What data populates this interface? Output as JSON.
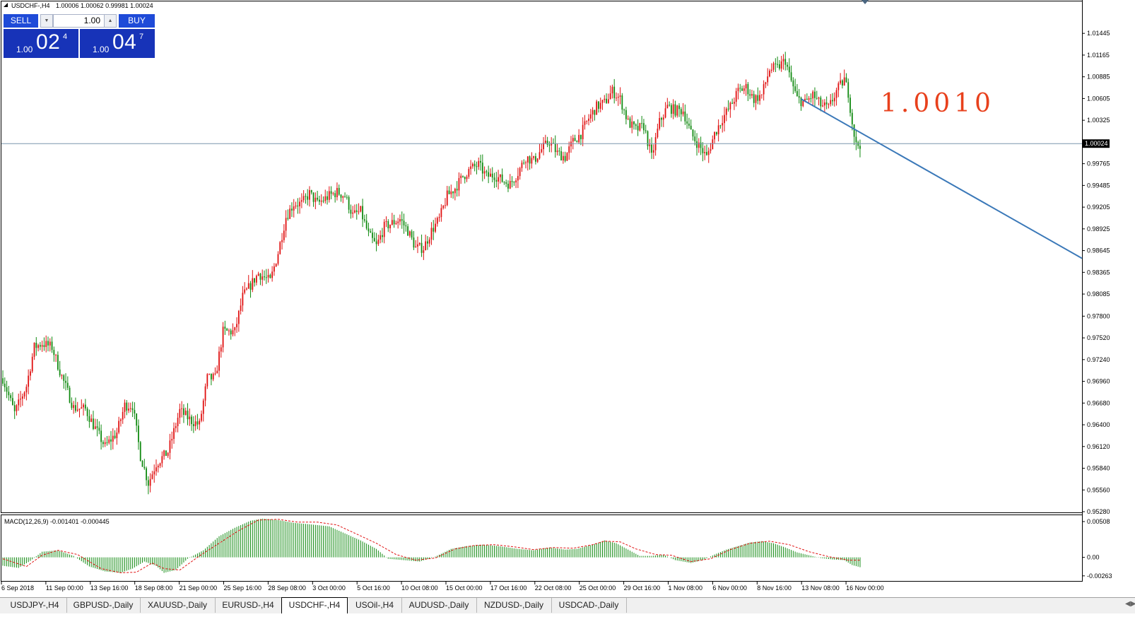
{
  "header": {
    "symbol_text": "USDCHF-,H4",
    "ohlc_text": "1.00006 1.00062 0.99981 1.00024"
  },
  "trade_panel": {
    "sell_label": "SELL",
    "buy_label": "BUY",
    "volume_value": "1.00",
    "sell_lots": "1.00",
    "sell_big": "02",
    "sell_frac": "4",
    "buy_lots": "1.00",
    "buy_big": "04",
    "buy_frac": "7"
  },
  "annotation": {
    "text": "1.0010",
    "color": "#e8401c"
  },
  "colors": {
    "bull": "#e01010",
    "bear": "#118a11",
    "hist": "#118a11",
    "signal": "#e01010",
    "trendline": "#3a78b8",
    "bidline": "#7a95ae"
  },
  "tabs": [
    {
      "label": "USDJPY-,H4"
    },
    {
      "label": "GBPUSD-,Daily"
    },
    {
      "label": "XAUUSD-,Daily"
    },
    {
      "label": "EURUSD-,H4"
    },
    {
      "label": "USDCHF-,H4"
    },
    {
      "label": "USOil-,H4"
    },
    {
      "label": "AUDUSD-,Daily"
    },
    {
      "label": "NZDUSD-,Daily"
    },
    {
      "label": "USDCAD-,Daily"
    }
  ],
  "active_tab": "USDCHF-,H4",
  "chart_data": {
    "type": "candlestick",
    "symbol": "USDCHF-",
    "timeframe": "H4",
    "ylim": [
      0.9528,
      1.0172
    ],
    "y_ticks": [
      "1.01445",
      "1.01165",
      "1.00885",
      "1.00605",
      "1.00325",
      "0.99765",
      "0.99485",
      "0.99205",
      "0.98925",
      "0.98645",
      "0.98365",
      "0.98085",
      "0.97800",
      "0.97520",
      "0.97240",
      "0.96960",
      "0.96680",
      "0.96400",
      "0.96120",
      "0.95840",
      "0.95560",
      "0.95280"
    ],
    "current_price_label": "1.00024",
    "current_price": 1.00024,
    "x_ticks": [
      "6 Sep 2018",
      "11 Sep 00:00",
      "13 Sep 16:00",
      "18 Sep 08:00",
      "21 Sep 00:00",
      "25 Sep 16:00",
      "28 Sep 08:00",
      "3 Oct 00:00",
      "5 Oct 16:00",
      "10 Oct 08:00",
      "15 Oct 00:00",
      "17 Oct 16:00",
      "22 Oct 08:00",
      "25 Oct 00:00",
      "29 Oct 16:00",
      "1 Nov 08:00",
      "6 Nov 00:00",
      "8 Nov 16:00",
      "13 Nov 08:00",
      "16 Nov 00:00"
    ],
    "anchors": [
      [
        0,
        0.97
      ],
      [
        6,
        0.9655
      ],
      [
        12,
        0.969
      ],
      [
        16,
        0.974
      ],
      [
        20,
        0.9745
      ],
      [
        25,
        0.974
      ],
      [
        30,
        0.9702
      ],
      [
        36,
        0.9662
      ],
      [
        42,
        0.966
      ],
      [
        46,
        0.964
      ],
      [
        52,
        0.9612
      ],
      [
        58,
        0.963
      ],
      [
        62,
        0.9665
      ],
      [
        66,
        0.9665
      ],
      [
        70,
        0.96
      ],
      [
        74,
        0.9565
      ],
      [
        78,
        0.959
      ],
      [
        84,
        0.9605
      ],
      [
        90,
        0.9658
      ],
      [
        96,
        0.9645
      ],
      [
        100,
        0.964
      ],
      [
        104,
        0.97
      ],
      [
        108,
        0.97
      ],
      [
        112,
        0.976
      ],
      [
        118,
        0.976
      ],
      [
        122,
        0.9805
      ],
      [
        126,
        0.982
      ],
      [
        130,
        0.9835
      ],
      [
        136,
        0.9825
      ],
      [
        140,
        0.9862
      ],
      [
        144,
        0.9908
      ],
      [
        148,
        0.9925
      ],
      [
        152,
        0.9925
      ],
      [
        156,
        0.9938
      ],
      [
        160,
        0.9925
      ],
      [
        166,
        0.9935
      ],
      [
        170,
        0.994
      ],
      [
        174,
        0.9935
      ],
      [
        178,
        0.991
      ],
      [
        182,
        0.9915
      ],
      [
        186,
        0.9885
      ],
      [
        190,
        0.987
      ],
      [
        194,
        0.9895
      ],
      [
        198,
        0.99
      ],
      [
        202,
        0.9905
      ],
      [
        206,
        0.989
      ],
      [
        210,
        0.9868
      ],
      [
        214,
        0.9868
      ],
      [
        218,
        0.989
      ],
      [
        222,
        0.9905
      ],
      [
        226,
        0.9935
      ],
      [
        230,
        0.9945
      ],
      [
        234,
        0.996
      ],
      [
        238,
        0.997
      ],
      [
        242,
        0.9975
      ],
      [
        246,
        0.996
      ],
      [
        250,
        0.9962
      ],
      [
        254,
        0.9955
      ],
      [
        258,
        0.995
      ],
      [
        262,
        0.9965
      ],
      [
        266,
        0.9985
      ],
      [
        270,
        0.998
      ],
      [
        274,
        0.9995
      ],
      [
        278,
        1.0005
      ],
      [
        282,
        0.999
      ],
      [
        286,
        0.9985
      ],
      [
        290,
        1.0005
      ],
      [
        294,
        1.0015
      ],
      [
        298,
        1.0035
      ],
      [
        302,
        1.005
      ],
      [
        306,
        1.0055
      ],
      [
        310,
        1.007
      ],
      [
        314,
        1.006
      ],
      [
        318,
        1.003
      ],
      [
        322,
        1.002
      ],
      [
        326,
        1.0025
      ],
      [
        330,
        0.9985
      ],
      [
        334,
        1.003
      ],
      [
        338,
        1.005
      ],
      [
        342,
        1.0045
      ],
      [
        346,
        1.0045
      ],
      [
        350,
        1.0015
      ],
      [
        354,
        1.0
      ],
      [
        358,
        0.9985
      ],
      [
        362,
        1.0015
      ],
      [
        366,
        1.0035
      ],
      [
        370,
        1.005
      ],
      [
        374,
        1.007
      ],
      [
        378,
        1.0075
      ],
      [
        382,
        1.006
      ],
      [
        386,
        1.0065
      ],
      [
        390,
        1.0098
      ],
      [
        394,
        1.01
      ],
      [
        398,
        1.011
      ],
      [
        400,
        1.009
      ],
      [
        404,
        1.006
      ],
      [
        408,
        1.0055
      ],
      [
        412,
        1.0065
      ],
      [
        416,
        1.0052
      ],
      [
        420,
        1.0048
      ],
      [
        424,
        1.007
      ],
      [
        428,
        1.0085
      ],
      [
        430,
        1.0068
      ],
      [
        432,
        1.003
      ],
      [
        434,
        1.0
      ],
      [
        436,
        1.0002
      ]
    ],
    "macd": {
      "label": "MACD(12,26,9) -0.001401 -0.000445",
      "ylim": [
        -0.00285,
        0.00508
      ],
      "y_ticks": [
        "0.00508",
        "0.00",
        "-0.00263"
      ],
      "main_last": -0.001401,
      "signal_last": -0.000445,
      "hist_anchors": [
        [
          0,
          -0.0012
        ],
        [
          8,
          -0.0015
        ],
        [
          14,
          -0.0005
        ],
        [
          20,
          0.0008
        ],
        [
          28,
          0.001
        ],
        [
          36,
          0.0002
        ],
        [
          44,
          -0.0013
        ],
        [
          52,
          -0.002
        ],
        [
          60,
          -0.0022
        ],
        [
          66,
          -0.0016
        ],
        [
          72,
          -0.0006
        ],
        [
          78,
          -0.0012
        ],
        [
          82,
          -0.0022
        ],
        [
          88,
          -0.0018
        ],
        [
          94,
          -0.0002
        ],
        [
          102,
          0.001
        ],
        [
          110,
          0.003
        ],
        [
          118,
          0.0042
        ],
        [
          126,
          0.0052
        ],
        [
          132,
          0.0055
        ],
        [
          140,
          0.0053
        ],
        [
          148,
          0.0049
        ],
        [
          156,
          0.0047
        ],
        [
          166,
          0.0044
        ],
        [
          174,
          0.0034
        ],
        [
          182,
          0.0024
        ],
        [
          190,
          0.0012
        ],
        [
          196,
          -0.0002
        ],
        [
          204,
          -0.0004
        ],
        [
          212,
          -0.0006
        ],
        [
          220,
          0.0001
        ],
        [
          228,
          0.0012
        ],
        [
          236,
          0.0016
        ],
        [
          244,
          0.0018
        ],
        [
          252,
          0.0016
        ],
        [
          262,
          0.0012
        ],
        [
          270,
          0.001
        ],
        [
          278,
          0.0014
        ],
        [
          286,
          0.0011
        ],
        [
          292,
          0.0012
        ],
        [
          300,
          0.0018
        ],
        [
          306,
          0.0024
        ],
        [
          312,
          0.002
        ],
        [
          318,
          0.0011
        ],
        [
          324,
          0.0002
        ],
        [
          330,
          0.0002
        ],
        [
          336,
          0.0004
        ],
        [
          342,
          -0.0004
        ],
        [
          350,
          -0.0008
        ],
        [
          356,
          -0.0004
        ],
        [
          362,
          0.0004
        ],
        [
          368,
          0.0011
        ],
        [
          374,
          0.0016
        ],
        [
          380,
          0.0021
        ],
        [
          386,
          0.0023
        ],
        [
          392,
          0.002
        ],
        [
          398,
          0.0014
        ],
        [
          404,
          0.0007
        ],
        [
          410,
          0.0003
        ],
        [
          416,
          -0.0001
        ],
        [
          422,
          -0.0003
        ],
        [
          428,
          -0.0004
        ],
        [
          432,
          -0.0011
        ],
        [
          436,
          -0.0014
        ]
      ],
      "signal_anchors": [
        [
          0,
          -0.0002
        ],
        [
          12,
          -0.0013
        ],
        [
          20,
          0.0003
        ],
        [
          28,
          0.001
        ],
        [
          38,
          0.0004
        ],
        [
          50,
          -0.0016
        ],
        [
          60,
          -0.0022
        ],
        [
          68,
          -0.0021
        ],
        [
          76,
          -0.0008
        ],
        [
          82,
          -0.0016
        ],
        [
          90,
          -0.0018
        ],
        [
          100,
          0.0002
        ],
        [
          110,
          0.002
        ],
        [
          120,
          0.0038
        ],
        [
          130,
          0.0053
        ],
        [
          140,
          0.0054
        ],
        [
          150,
          0.005
        ],
        [
          160,
          0.005
        ],
        [
          170,
          0.0046
        ],
        [
          180,
          0.0033
        ],
        [
          190,
          0.002
        ],
        [
          200,
          0.0004
        ],
        [
          210,
          -0.0004
        ],
        [
          220,
          -0.0001
        ],
        [
          230,
          0.0012
        ],
        [
          240,
          0.0017
        ],
        [
          250,
          0.0018
        ],
        [
          260,
          0.0015
        ],
        [
          270,
          0.0011
        ],
        [
          280,
          0.0014
        ],
        [
          290,
          0.0013
        ],
        [
          300,
          0.0018
        ],
        [
          306,
          0.0023
        ],
        [
          314,
          0.0022
        ],
        [
          322,
          0.0012
        ],
        [
          332,
          0.0004
        ],
        [
          340,
          0.0003
        ],
        [
          350,
          -0.0006
        ],
        [
          360,
          -0.0002
        ],
        [
          370,
          0.0011
        ],
        [
          380,
          0.002
        ],
        [
          390,
          0.0023
        ],
        [
          400,
          0.0018
        ],
        [
          410,
          0.0008
        ],
        [
          420,
          0.0001
        ],
        [
          430,
          -0.0004
        ],
        [
          436,
          -0.0004
        ]
      ]
    }
  }
}
